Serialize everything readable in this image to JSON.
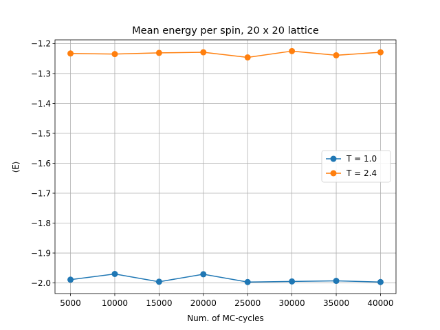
{
  "chart_data": {
    "type": "line",
    "title": "Mean energy per spin, 20 x 20 lattice",
    "xlabel": "Num. of MC-cycles",
    "ylabel": "⟨E⟩",
    "x": [
      5000,
      10000,
      15000,
      20000,
      25000,
      30000,
      35000,
      40000
    ],
    "xticks": [
      5000,
      10000,
      15000,
      20000,
      25000,
      30000,
      35000,
      40000
    ],
    "yticks": [
      -1.2,
      -1.3,
      -1.4,
      -1.5,
      -1.6,
      -1.7,
      -1.8,
      -1.9,
      -2.0
    ],
    "ytick_labels": [
      "−1.2",
      "−1.3",
      "−1.4",
      "−1.5",
      "−1.6",
      "−1.7",
      "−1.8",
      "−1.9",
      "−2.0"
    ],
    "xlim": [
      3250,
      41750
    ],
    "ylim": [
      -2.0355,
      -1.1875
    ],
    "grid": true,
    "legend_position": "center-right",
    "series": [
      {
        "name": "T = 1.0",
        "color": "#1f77b4",
        "values": [
          -1.989,
          -1.97,
          -1.996,
          -1.971,
          -1.997,
          -1.995,
          -1.993,
          -1.997
        ]
      },
      {
        "name": "T = 2.4",
        "color": "#ff7f0e",
        "values": [
          -1.233,
          -1.235,
          -1.231,
          -1.229,
          -1.246,
          -1.225,
          -1.239,
          -1.229
        ]
      }
    ]
  }
}
